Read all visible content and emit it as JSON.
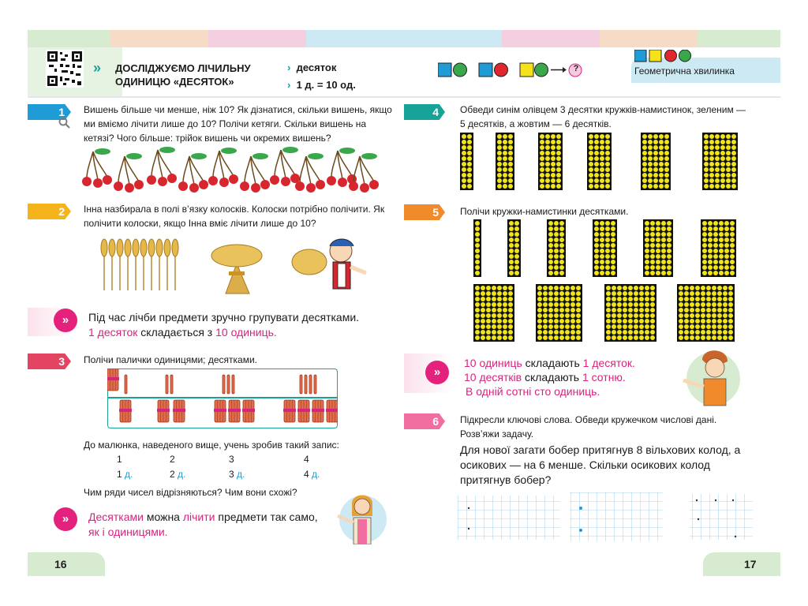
{
  "header": {
    "topic": "ДОСЛІДЖУЄМО ЛІЧИЛЬНУ ОДИНИЦЮ «ДЕСЯТОК»",
    "bullet1": "десяток",
    "bullet2": "1 д. = 10 од.",
    "geom_question": "?",
    "geom_label": "Геометрична хвилинка"
  },
  "left": {
    "t1": {
      "num": "1",
      "text": "Вишень більше чи менше, ніж 10? Як дізнатися, скільки вишень, якщо ми вміємо лічити лише до 10? Полічи кетяги. Скільки вишень на кетязі? Чого більше: трійок вишень чи окремих вишень?"
    },
    "t2": {
      "num": "2",
      "text": "Інна назбирала в полі в’язку колосків. Колоски потрібно полічити. Як полічити колоски, якщо Інна вміє лічити лише до 10?"
    },
    "info1": {
      "line1": "Під час лічби предмети зручно групувати десятками.",
      "p1": "1 десяток",
      "p2": " складається з ",
      "p3": "10 одиниць."
    },
    "t3": {
      "num": "3",
      "text": "Полічи палички одиницями; десятками.",
      "record": "До малюнка, наведеного вище, учень зробив такий запис:",
      "row1": [
        "1",
        "2",
        "3",
        "4"
      ],
      "row2": [
        "1",
        "2",
        "3",
        "4"
      ],
      "unit": "д.",
      "question": "Чим ряди чисел відрізняються? Чим вони схожі?"
    },
    "info2": {
      "a": "Десятками",
      "b": " можна ",
      "c": "лічити",
      "d": " предмети так само,",
      "e": "як і одиницями."
    },
    "page": "16"
  },
  "right": {
    "t4": {
      "num": "4",
      "text": "Обведи синім олівцем 3 десятки кружків-намистинок, зеленим — 5 десятків, а жовтим — 6 десятків."
    },
    "t5": {
      "num": "5",
      "text": "Полічи кружки-намистинки десятками."
    },
    "info3": {
      "l1a": "10 одиниць",
      "l1b": " складають ",
      "l1c": "1 десяток.",
      "l2a": "10 десятків",
      "l2b": " складають ",
      "l2c": "1 сотню.",
      "l3": "В одній сотні сто одиниць."
    },
    "t6": {
      "num": "6",
      "text": "Підкресли ключові слова. Обведи кружечком числові дані. Розв’яжи задачу.",
      "problem": "Для нової загати бобер притягнув 8 вільхових колод, а осикових — на 6 менше. Скільки осикових колод притягнув бобер?"
    },
    "page": "17"
  },
  "colors": {
    "teal": "#17a398",
    "pink": "#d6247f",
    "blue": "#1f9bd6",
    "bead": "#f0e41b"
  }
}
